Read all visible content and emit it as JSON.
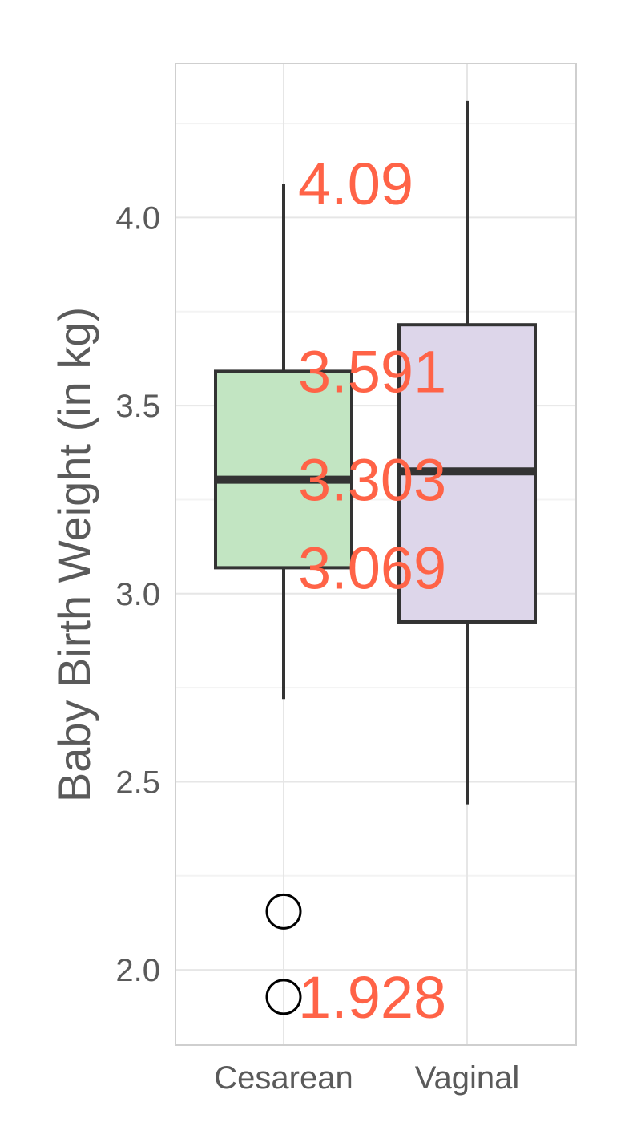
{
  "chart_data": {
    "type": "box",
    "title": "",
    "xlabel": "",
    "ylabel": "Baby Birth Weight (in kg)",
    "categories": [
      "Cesarean",
      "Vaginal"
    ],
    "ylim": [
      1.8,
      4.41
    ],
    "y_ticks": [
      2.0,
      2.5,
      3.0,
      3.5,
      4.0
    ],
    "y_tick_labels": [
      "2.0",
      "2.5",
      "3.0",
      "3.5",
      "4.0"
    ],
    "grid": true,
    "legend": "none",
    "boxes": [
      {
        "category": "Cesarean",
        "whisker_low": 2.72,
        "q1": 3.069,
        "median": 3.303,
        "q3": 3.591,
        "whisker_high": 4.09,
        "outliers": [
          2.155,
          1.928
        ],
        "fill": "#c2e5c2"
      },
      {
        "category": "Vaginal",
        "whisker_low": 2.44,
        "q1": 2.925,
        "median": 3.325,
        "q3": 3.715,
        "whisker_high": 4.31,
        "outliers": [],
        "fill": "#ddd6ea"
      }
    ],
    "annotations": [
      {
        "text": "4.09",
        "value": 4.09
      },
      {
        "text": "3.591",
        "value": 3.591
      },
      {
        "text": "3.303",
        "value": 3.303
      },
      {
        "text": "3.069",
        "value": 3.069
      },
      {
        "text": "1.928",
        "value": 1.928
      }
    ],
    "annotation_color": "#ff6347"
  }
}
